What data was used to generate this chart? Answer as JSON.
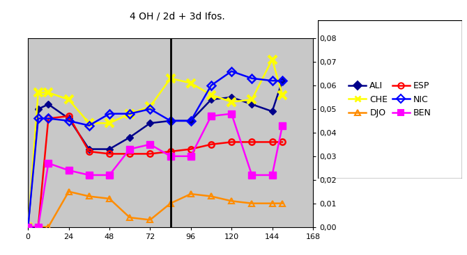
{
  "title": "4 OH / 2d + 3d Ifos.",
  "plot_bg_color": "#c8c8c8",
  "outer_bg_color": "#ffffff",
  "xmin": 0,
  "xmax": 168,
  "ymin": 0.0,
  "ymax": 0.08,
  "yticks": [
    0.0,
    0.01,
    0.02,
    0.03,
    0.04,
    0.05,
    0.06,
    0.07,
    0.08
  ],
  "xticks": [
    0,
    24,
    48,
    72,
    96,
    120,
    144,
    168
  ],
  "vline_x": 84,
  "series": {
    "ALI": {
      "x": [
        0,
        6,
        12,
        24,
        36,
        48,
        60,
        72,
        84,
        96,
        108,
        120,
        132,
        144,
        150
      ],
      "y": [
        0.0,
        0.05,
        0.052,
        0.046,
        0.033,
        0.033,
        0.038,
        0.044,
        0.045,
        0.045,
        0.054,
        0.055,
        0.052,
        0.049,
        0.062
      ],
      "color": "#00008B",
      "marker": "D",
      "markersize": 5,
      "linewidth": 1.8,
      "markerfacecolor": "#00008B",
      "markeredgecolor": "#00008B"
    },
    "CHE": {
      "x": [
        0,
        6,
        12,
        24,
        36,
        48,
        60,
        72,
        84,
        96,
        108,
        120,
        132,
        144,
        150
      ],
      "y": [
        0.0,
        0.057,
        0.057,
        0.054,
        0.044,
        0.044,
        0.048,
        0.051,
        0.063,
        0.061,
        0.056,
        0.053,
        0.054,
        0.071,
        0.056
      ],
      "color": "#ffff00",
      "marker": "x",
      "markersize": 9,
      "linewidth": 1.8,
      "markerfacecolor": "#ffff00",
      "markeredgecolor": "#ffff00",
      "markeredgewidth": 3
    },
    "DJO": {
      "x": [
        0,
        6,
        12,
        24,
        36,
        48,
        60,
        72,
        84,
        96,
        108,
        120,
        132,
        144,
        150
      ],
      "y": [
        0.0,
        0.0,
        0.0,
        0.015,
        0.013,
        0.012,
        0.004,
        0.003,
        0.01,
        0.014,
        0.013,
        0.011,
        0.01,
        0.01,
        0.01
      ],
      "color": "#ff8c00",
      "marker": "^",
      "markersize": 6,
      "linewidth": 1.8,
      "markerfacecolor": "none",
      "markeredgecolor": "#ff8c00",
      "markeredgewidth": 1.5
    },
    "ESP": {
      "x": [
        0,
        6,
        12,
        24,
        36,
        48,
        60,
        72,
        84,
        96,
        108,
        120,
        132,
        144,
        150
      ],
      "y": [
        0.0,
        0.0,
        0.046,
        0.047,
        0.032,
        0.031,
        0.031,
        0.031,
        0.032,
        0.033,
        0.035,
        0.036,
        0.036,
        0.036,
        0.036
      ],
      "color": "#ff0000",
      "marker": "o",
      "markersize": 6,
      "linewidth": 1.8,
      "markerfacecolor": "none",
      "markeredgecolor": "#ff0000",
      "markeredgewidth": 1.8
    },
    "NIC": {
      "x": [
        0,
        6,
        12,
        24,
        36,
        48,
        60,
        72,
        84,
        96,
        108,
        120,
        132,
        144,
        150
      ],
      "y": [
        0.0,
        0.046,
        0.046,
        0.045,
        0.043,
        0.048,
        0.048,
        0.05,
        0.045,
        0.045,
        0.06,
        0.066,
        0.063,
        0.062,
        0.062
      ],
      "color": "#0000ff",
      "marker": "D",
      "markersize": 6,
      "linewidth": 1.8,
      "markerfacecolor": "none",
      "markeredgecolor": "#0000ff",
      "markeredgewidth": 1.8
    },
    "BEN": {
      "x": [
        0,
        6,
        12,
        24,
        36,
        48,
        60,
        72,
        84,
        96,
        108,
        120,
        132,
        144,
        150
      ],
      "y": [
        0.0,
        0.0,
        0.027,
        0.024,
        0.022,
        0.022,
        0.033,
        0.035,
        0.03,
        0.03,
        0.047,
        0.048,
        0.022,
        0.022,
        0.043
      ],
      "color": "#ff00ff",
      "marker": "s",
      "markersize": 7,
      "linewidth": 1.8,
      "markerfacecolor": "#ff00ff",
      "markeredgecolor": "#ff00ff"
    }
  },
  "legend_order": [
    "ALI",
    "CHE",
    "DJO",
    "ESP",
    "NIC",
    "BEN"
  ],
  "legend_props": {
    "ALI": {
      "marker": "D",
      "mfc": "#00008B",
      "mec": "#00008B",
      "color": "#00008B"
    },
    "CHE": {
      "marker": "x",
      "mfc": "#ffff00",
      "mec": "#ffff00",
      "color": "#ffff00"
    },
    "DJO": {
      "marker": "^",
      "mfc": "none",
      "mec": "#ff8c00",
      "color": "#ff8c00"
    },
    "ESP": {
      "marker": "o",
      "mfc": "none",
      "mec": "#ff0000",
      "color": "#ff0000"
    },
    "NIC": {
      "marker": "D",
      "mfc": "none",
      "mec": "#0000ff",
      "color": "#0000ff"
    },
    "BEN": {
      "marker": "s",
      "mfc": "#ff00ff",
      "mec": "#ff00ff",
      "color": "#ff00ff"
    }
  }
}
